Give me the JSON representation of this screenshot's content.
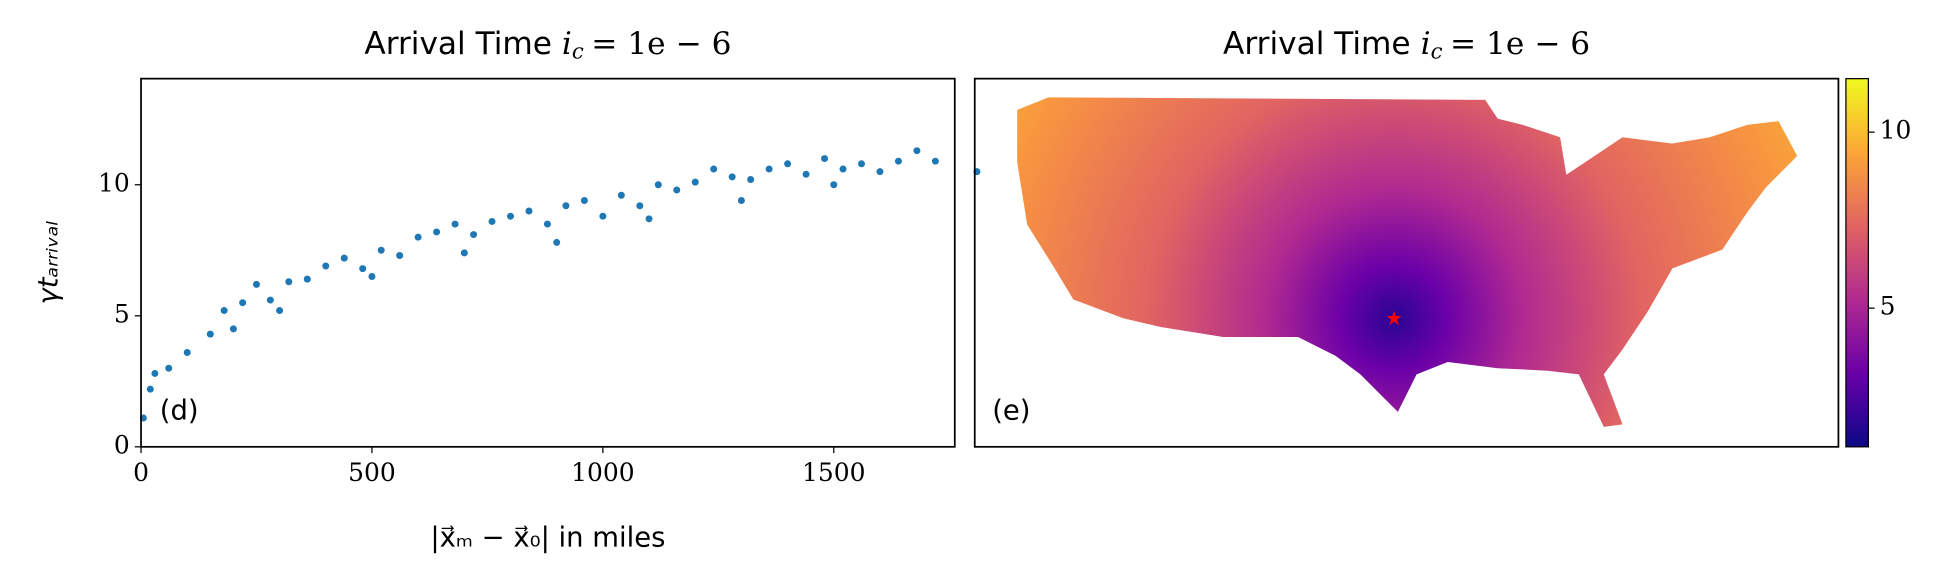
{
  "chart_data": [
    {
      "type": "scatter",
      "title": "Arrival Time",
      "title_var": "i",
      "title_sub": "c",
      "title_tail": "= 1e − 6",
      "xlabel": "|x⃗ₘ − x⃗₀| in miles",
      "ylabel": "γtₐᵣᵣᵢᵥₐₗ",
      "panel_label": "(d)",
      "color": "#1f77b4",
      "x": [
        5,
        20,
        30,
        60,
        100,
        150,
        180,
        200,
        220,
        250,
        280,
        300,
        320,
        360,
        400,
        440,
        480,
        500,
        520,
        560,
        600,
        640,
        680,
        700,
        720,
        760,
        800,
        840,
        880,
        900,
        920,
        960,
        1000,
        1040,
        1080,
        1100,
        1120,
        1160,
        1200,
        1240,
        1280,
        1300,
        1320,
        1360,
        1400,
        1440,
        1480,
        1500,
        1520,
        1560,
        1600,
        1640,
        1680,
        1720,
        1810
      ],
      "values": [
        1.1,
        2.2,
        2.8,
        3.0,
        3.6,
        4.3,
        5.2,
        4.5,
        5.5,
        6.2,
        5.6,
        5.2,
        6.3,
        6.4,
        6.9,
        7.2,
        6.8,
        6.5,
        7.5,
        7.3,
        8.0,
        8.2,
        8.5,
        7.4,
        8.1,
        8.6,
        8.8,
        9.0,
        8.5,
        7.8,
        9.2,
        9.4,
        8.8,
        9.6,
        9.2,
        8.7,
        10.0,
        9.8,
        10.1,
        10.6,
        10.3,
        9.4,
        10.2,
        10.6,
        10.8,
        10.4,
        11.0,
        10.0,
        10.6,
        10.8,
        10.5,
        10.9,
        11.3,
        10.9,
        10.5
      ],
      "xlim": [
        0,
        1762
      ],
      "xticks": [
        0,
        500,
        1000,
        1500
      ],
      "ylim": [
        0,
        14.05
      ],
      "yticks": [
        0,
        5,
        10
      ]
    },
    {
      "type": "map",
      "title": "Arrival Time",
      "title_var": "i",
      "title_sub": "c",
      "title_tail": "= 1e − 6",
      "panel_label": "(e)",
      "clim": [
        1.06,
        11.52
      ],
      "cticks": [
        5,
        10
      ],
      "colormap_colors": [
        "#0d0887",
        "#6a00a8",
        "#b12a90",
        "#e16462",
        "#fca636",
        "#f0f921"
      ]
    }
  ]
}
